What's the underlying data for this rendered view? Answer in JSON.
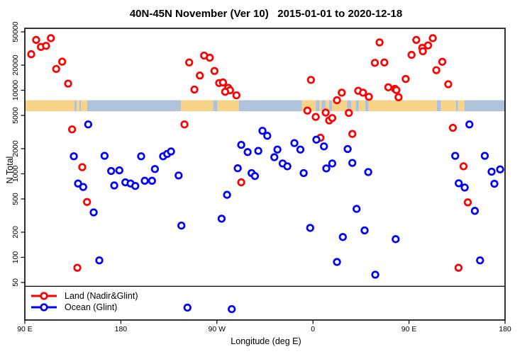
{
  "title": "40N-45N November (Ver 10)   2015-01-01 to 2020-12-18",
  "chart_data": {
    "type": "scatter",
    "title": "40N-45N November (Ver 10)   2015-01-01 to 2020-12-18",
    "xlabel": "Longitude (deg E)",
    "ylabel": "N Total",
    "x_axis": {
      "note": "longitude axis wraps eastward starting at 90E; positions are degrees east of 90E",
      "span_deg": 450,
      "tick_positions_deg": [
        0,
        90,
        180,
        270,
        360,
        450
      ],
      "tick_labels": [
        "90 E",
        "180",
        "90 W",
        "0",
        "90 E",
        "180"
      ]
    },
    "y_axis": {
      "scale": "log",
      "top_value": 50000,
      "ticks": [
        50000,
        20000,
        10000,
        5000,
        2000,
        1000,
        500,
        200,
        100,
        50
      ],
      "tick_labels": [
        "50000",
        "20000",
        "10000",
        "5000",
        "2000",
        "1000",
        "500",
        "200",
        "100",
        "50"
      ]
    },
    "grid": false,
    "legend_position": "bottom-left",
    "threshold_line": {
      "n": 45,
      "color": "#000000"
    },
    "coastline_band": {
      "n_top": 7600,
      "n_bottom": 5600,
      "land_color": "#F8D488",
      "ocean_color": "#AFC2DC",
      "segments": [
        [
          0,
          46.5,
          "land"
        ],
        [
          46.5,
          48.5,
          "ocean"
        ],
        [
          48.5,
          51,
          "land"
        ],
        [
          51,
          52.5,
          "ocean"
        ],
        [
          52.5,
          58.5,
          "land"
        ],
        [
          58.5,
          146.3,
          "ocean"
        ],
        [
          146.3,
          176.5,
          "land"
        ],
        [
          176.5,
          180.5,
          "ocean"
        ],
        [
          180.5,
          200.5,
          "land"
        ],
        [
          200.5,
          259.6,
          "ocean"
        ],
        [
          259.6,
          272.6,
          "land"
        ],
        [
          272.6,
          276,
          "ocean"
        ],
        [
          276,
          278,
          "land"
        ],
        [
          278,
          282,
          "ocean"
        ],
        [
          282,
          285,
          "land"
        ],
        [
          285,
          288,
          "ocean"
        ],
        [
          288,
          302,
          "land"
        ],
        [
          302,
          306,
          "ocean"
        ],
        [
          306,
          310,
          "land"
        ],
        [
          310,
          313,
          "ocean"
        ],
        [
          313,
          319,
          "land"
        ],
        [
          319,
          322,
          "ocean"
        ],
        [
          322,
          386,
          "land"
        ],
        [
          386,
          390,
          "ocean"
        ],
        [
          390,
          404,
          "land"
        ],
        [
          404,
          406,
          "ocean"
        ],
        [
          406,
          412,
          "land"
        ],
        [
          412,
          450,
          "ocean"
        ]
      ]
    },
    "series": [
      {
        "name": "Land (Nadir&Glint)",
        "color": "#FF0000",
        "points": [
          [
            10.6,
            40000
          ],
          [
            24.4,
            42000
          ],
          [
            15.1,
            33000
          ],
          [
            19.9,
            34000
          ],
          [
            6.0,
            27000
          ],
          [
            35.0,
            22000
          ],
          [
            29.4,
            18000
          ],
          [
            40.6,
            12000
          ],
          [
            44.3,
            3400
          ],
          [
            53.8,
            1200
          ],
          [
            58.3,
            460
          ],
          [
            49.2,
            75
          ],
          [
            149.6,
            3900
          ],
          [
            154.0,
            21500
          ],
          [
            168.0,
            26000
          ],
          [
            173.3,
            24500
          ],
          [
            177.7,
            17000
          ],
          [
            164.0,
            15000
          ],
          [
            158.9,
            10200
          ],
          [
            182.1,
            12200
          ],
          [
            185.7,
            12400
          ],
          [
            190.6,
            10700
          ],
          [
            192.3,
            10000
          ],
          [
            187.7,
            9600
          ],
          [
            198.3,
            8700
          ],
          [
            202.8,
            790
          ],
          [
            264.8,
            5700
          ],
          [
            268.1,
            13300
          ],
          [
            272.6,
            4800
          ],
          [
            277.0,
            2700
          ],
          [
            281.9,
            5400
          ],
          [
            285.2,
            4350
          ],
          [
            288.1,
            4650
          ],
          [
            292.5,
            7600
          ],
          [
            297.0,
            9350
          ],
          [
            303.6,
            5350
          ],
          [
            306.9,
            3000
          ],
          [
            312.4,
            9850
          ],
          [
            316.9,
            9350
          ],
          [
            322.4,
            8350
          ],
          [
            328.0,
            21300
          ],
          [
            332.4,
            37400
          ],
          [
            336.9,
            21500
          ],
          [
            340.6,
            10850
          ],
          [
            346.8,
            10400
          ],
          [
            348.2,
            10050
          ],
          [
            350.2,
            8250
          ],
          [
            356.9,
            13650
          ],
          [
            362.4,
            26500
          ],
          [
            366.8,
            40000
          ],
          [
            372.4,
            32200
          ],
          [
            373.0,
            29300
          ],
          [
            377.9,
            34400
          ],
          [
            382.3,
            42000
          ],
          [
            385.6,
            17400
          ],
          [
            391.2,
            21900
          ],
          [
            396.8,
            11800
          ],
          [
            401.1,
            3550
          ],
          [
            406.4,
            75
          ],
          [
            411.1,
            1230
          ],
          [
            415.1,
            455
          ]
        ]
      },
      {
        "name": "Ocean (Glint)",
        "color": "#0000FF",
        "points": [
          [
            45.9,
            1620
          ],
          [
            49.9,
            765
          ],
          [
            54.7,
            695
          ],
          [
            59.4,
            3900
          ],
          [
            64.5,
            345
          ],
          [
            69.8,
            92
          ],
          [
            74.7,
            1640
          ],
          [
            80.9,
            1080
          ],
          [
            83.8,
            725
          ],
          [
            88.6,
            1100
          ],
          [
            94.2,
            790
          ],
          [
            99.1,
            765
          ],
          [
            103.5,
            715
          ],
          [
            109.0,
            1620
          ],
          [
            112.4,
            825
          ],
          [
            119.2,
            825
          ],
          [
            121.9,
            1140
          ],
          [
            129.6,
            1620
          ],
          [
            133.4,
            1730
          ],
          [
            137.0,
            1850
          ],
          [
            144.1,
            955
          ],
          [
            146.7,
            240
          ],
          [
            152.4,
            25
          ],
          [
            184.4,
            290
          ],
          [
            189.5,
            560
          ],
          [
            193.9,
            24
          ],
          [
            199.5,
            1165
          ],
          [
            202.8,
            2220
          ],
          [
            208.8,
            1820
          ],
          [
            212.5,
            1020
          ],
          [
            215.6,
            940
          ],
          [
            218.8,
            1880
          ],
          [
            222.7,
            3270
          ],
          [
            227.2,
            2850
          ],
          [
            233.8,
            1580
          ],
          [
            236.7,
            1950
          ],
          [
            241.6,
            1330
          ],
          [
            246.0,
            1230
          ],
          [
            252.6,
            2330
          ],
          [
            258.2,
            1950
          ],
          [
            261.3,
            1020
          ],
          [
            267.4,
            225
          ],
          [
            273.2,
            2560
          ],
          [
            280.3,
            2130
          ],
          [
            282.5,
            1160
          ],
          [
            288.1,
            1330
          ],
          [
            292.5,
            88
          ],
          [
            298.0,
            175
          ],
          [
            302.5,
            1980
          ],
          [
            306.9,
            1350
          ],
          [
            310.9,
            380
          ],
          [
            318.4,
            210
          ],
          [
            321.8,
            1050
          ],
          [
            328.4,
            62
          ],
          [
            347.5,
            165
          ],
          [
            403.3,
            1640
          ],
          [
            406.6,
            770
          ],
          [
            412.2,
            685
          ],
          [
            416.6,
            3900
          ],
          [
            421.7,
            360
          ],
          [
            426.6,
            92
          ],
          [
            431.0,
            1640
          ],
          [
            437.4,
            1060
          ],
          [
            440.0,
            760
          ],
          [
            445.4,
            1130
          ]
        ]
      }
    ]
  },
  "legend": {
    "items": [
      {
        "label": "Land (Nadir&Glint)",
        "color": "#FF0000"
      },
      {
        "label": "Ocean (Glint)",
        "color": "#0000FF"
      }
    ]
  },
  "style": {
    "marker_radius": 4.3,
    "marker_stroke": 2.7,
    "axis_color": "#000000"
  }
}
